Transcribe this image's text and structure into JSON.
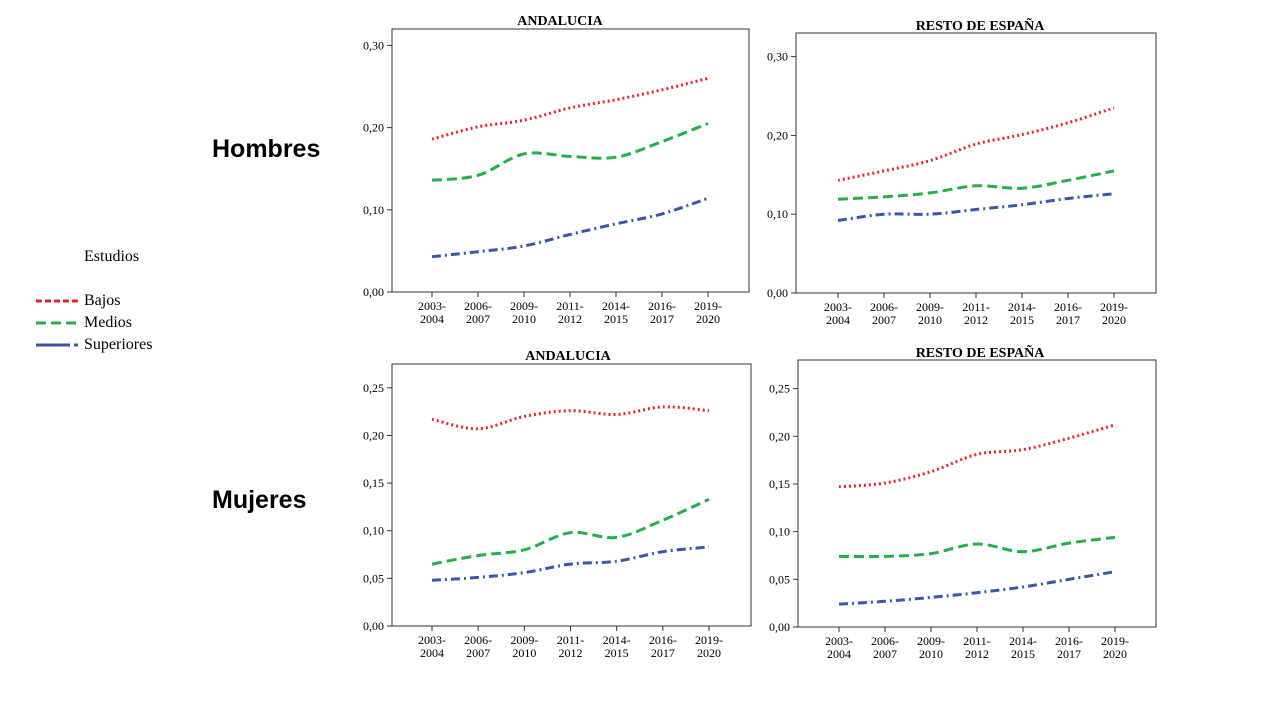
{
  "row_labels": {
    "hombres": "Hombres",
    "mujeres": "Mujeres"
  },
  "legend": {
    "title": "Estudios",
    "items": [
      {
        "label": "Bajos",
        "color": "#e8232a",
        "style": "dotted"
      },
      {
        "label": "Medios",
        "color": "#22b04a",
        "style": "dashed"
      },
      {
        "label": "Superiores",
        "color": "#3a57a7",
        "style": "dashdot"
      }
    ]
  },
  "chart_data": [
    {
      "type": "line",
      "title": "ANDALUCIA",
      "categories": [
        [
          "2003-",
          "2004"
        ],
        [
          "2006-",
          "2007"
        ],
        [
          "2009-",
          "2010"
        ],
        [
          "2011-",
          "2012"
        ],
        [
          "2014-",
          "2015"
        ],
        [
          "2016-",
          "2017"
        ],
        [
          "2019-",
          "2020"
        ]
      ],
      "ylim": [
        0,
        0.32
      ],
      "yticks": [
        0,
        0.1,
        0.2,
        0.3
      ],
      "ytick_labels": [
        "0,00",
        "0,10",
        "0,20",
        "0,30"
      ],
      "grid": false,
      "series": [
        {
          "name": "Bajos",
          "values": [
            0.186,
            0.201,
            0.209,
            0.224,
            0.234,
            0.246,
            0.26
          ]
        },
        {
          "name": "Medios",
          "values": [
            0.136,
            0.142,
            0.168,
            0.165,
            0.164,
            0.183,
            0.205
          ]
        },
        {
          "name": "Superiores",
          "values": [
            0.043,
            0.049,
            0.056,
            0.07,
            0.083,
            0.095,
            0.114
          ]
        }
      ]
    },
    {
      "type": "line",
      "title": "RESTO DE ESPAÑA",
      "categories": [
        [
          "2003-",
          "2004"
        ],
        [
          "2006-",
          "2007"
        ],
        [
          "2009-",
          "2010"
        ],
        [
          "2011-",
          "2012"
        ],
        [
          "2014-",
          "2015"
        ],
        [
          "2016-",
          "2017"
        ],
        [
          "2019-",
          "2020"
        ]
      ],
      "ylim": [
        0,
        0.33
      ],
      "yticks": [
        0,
        0.1,
        0.2,
        0.3
      ],
      "ytick_labels": [
        "0,00",
        "0,10",
        "0,20",
        "0,30"
      ],
      "grid": false,
      "series": [
        {
          "name": "Bajos",
          "values": [
            0.143,
            0.155,
            0.168,
            0.189,
            0.201,
            0.216,
            0.235
          ]
        },
        {
          "name": "Medios",
          "values": [
            0.119,
            0.122,
            0.127,
            0.136,
            0.133,
            0.143,
            0.155
          ]
        },
        {
          "name": "Superiores",
          "values": [
            0.092,
            0.1,
            0.1,
            0.106,
            0.112,
            0.12,
            0.126
          ]
        }
      ]
    },
    {
      "type": "line",
      "title": "ANDALUCIA",
      "categories": [
        [
          "2003-",
          "2004"
        ],
        [
          "2006-",
          "2007"
        ],
        [
          "2009-",
          "2010"
        ],
        [
          "2011-",
          "2012"
        ],
        [
          "2014-",
          "2015"
        ],
        [
          "2016-",
          "2017"
        ],
        [
          "2019-",
          "2020"
        ]
      ],
      "ylim": [
        0,
        0.275
      ],
      "yticks": [
        0,
        0.05,
        0.1,
        0.15,
        0.2,
        0.25
      ],
      "ytick_labels": [
        "0,00",
        "0,05",
        "0,10",
        "0,15",
        "0,20",
        "0,25"
      ],
      "grid": false,
      "series": [
        {
          "name": "Bajos",
          "values": [
            0.217,
            0.207,
            0.22,
            0.226,
            0.222,
            0.23,
            0.226
          ]
        },
        {
          "name": "Medios",
          "values": [
            0.065,
            0.074,
            0.08,
            0.098,
            0.093,
            0.111,
            0.133
          ]
        },
        {
          "name": "Superiores",
          "values": [
            0.048,
            0.051,
            0.056,
            0.065,
            0.068,
            0.078,
            0.083
          ]
        }
      ]
    },
    {
      "type": "line",
      "title": "RESTO DE ESPAÑA",
      "categories": [
        [
          "2003-",
          "2004"
        ],
        [
          "2006-",
          "2007"
        ],
        [
          "2009-",
          "2010"
        ],
        [
          "2011-",
          "2012"
        ],
        [
          "2014-",
          "2015"
        ],
        [
          "2016-",
          "2017"
        ],
        [
          "2019-",
          "2020"
        ]
      ],
      "ylim": [
        0,
        0.28
      ],
      "yticks": [
        0,
        0.05,
        0.1,
        0.15,
        0.2,
        0.25
      ],
      "ytick_labels": [
        "0,00",
        "0,05",
        "0,10",
        "0,15",
        "0,20",
        "0,25"
      ],
      "grid": false,
      "series": [
        {
          "name": "Bajos",
          "values": [
            0.147,
            0.151,
            0.163,
            0.181,
            0.186,
            0.198,
            0.212
          ]
        },
        {
          "name": "Medios",
          "values": [
            0.074,
            0.074,
            0.077,
            0.087,
            0.079,
            0.088,
            0.094
          ]
        },
        {
          "name": "Superiores",
          "values": [
            0.024,
            0.027,
            0.031,
            0.036,
            0.042,
            0.05,
            0.058
          ]
        }
      ]
    }
  ]
}
